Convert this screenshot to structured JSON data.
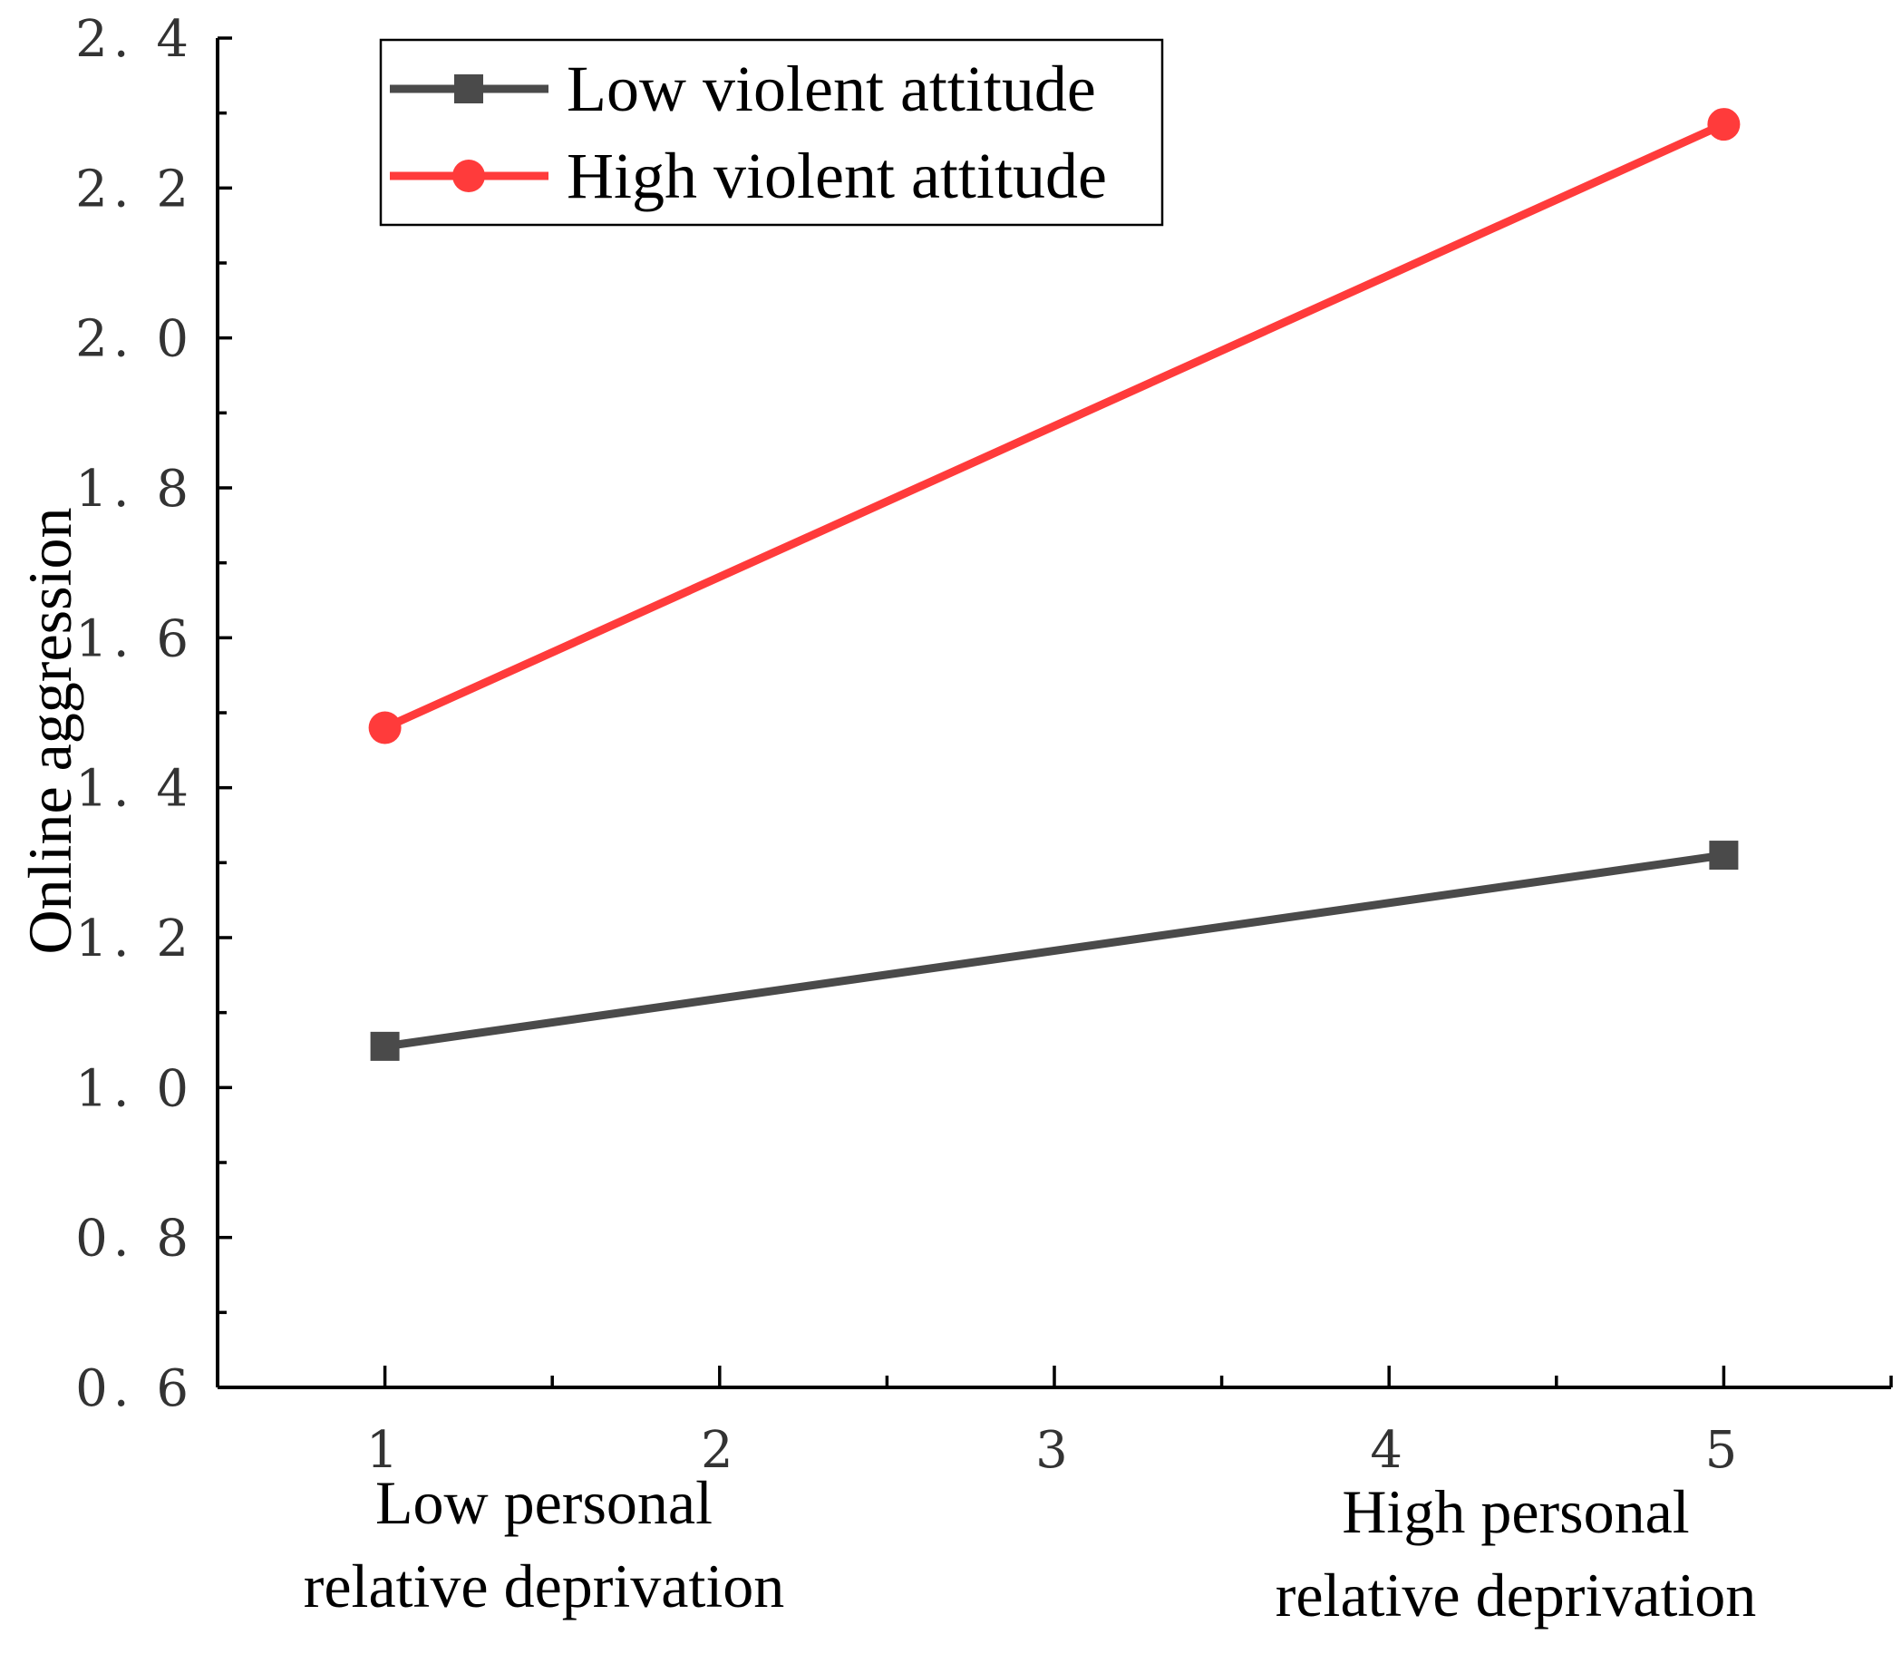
{
  "chart_data": {
    "type": "line",
    "x": [
      1,
      5
    ],
    "xlim": [
      0.5,
      5.5
    ],
    "ylim": [
      0.6,
      2.4
    ],
    "xticks": [
      1,
      2,
      3,
      4,
      5
    ],
    "xtick_labels": [
      "1",
      "2",
      "3",
      "4",
      "5"
    ],
    "xminor_ticks": [
      1.5,
      2.5,
      3.5,
      4.5,
      5.5
    ],
    "yticks": [
      0.6,
      0.8,
      1.0,
      1.2,
      1.4,
      1.6,
      1.8,
      2.0,
      2.2,
      2.4
    ],
    "ytick_labels": [
      "0. 6",
      "0. 8",
      "1. 0",
      "1. 2",
      "1. 4",
      "1. 6",
      "1. 8",
      "2. 0",
      "2. 2",
      "2. 4"
    ],
    "yminor_ticks": [
      0.7,
      0.9,
      1.1,
      1.3,
      1.5,
      1.7,
      1.9,
      2.1,
      2.3
    ],
    "ylabel": "Online aggression",
    "xlabel_left": [
      "Low personal",
      "relative deprivation"
    ],
    "xlabel_right": [
      "High personal",
      "relative deprivation"
    ],
    "legend_position": "top-left",
    "series": [
      {
        "name": "Low violent attitude",
        "marker": "square",
        "color": "#4a4a4a",
        "x": [
          1,
          5
        ],
        "values": [
          1.055,
          1.31
        ]
      },
      {
        "name": "High violent attitude",
        "marker": "circle",
        "color": "#ff3b3b",
        "x": [
          1,
          5
        ],
        "values": [
          1.48,
          2.285
        ]
      }
    ]
  }
}
